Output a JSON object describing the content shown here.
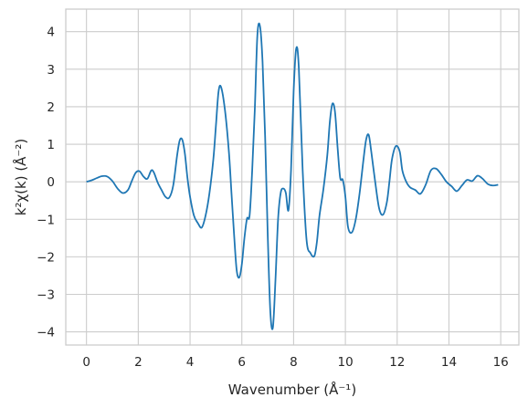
{
  "chart_data": {
    "type": "line",
    "title": "",
    "xlabel": "Wavenumber (Å⁻¹)",
    "ylabel": "k²χ(k) (Å⁻²)",
    "xlim": [
      -0.8,
      16.7
    ],
    "ylim": [
      -4.35,
      4.6
    ],
    "xticks": [
      0,
      2,
      4,
      6,
      8,
      10,
      12,
      14,
      16
    ],
    "xtick_labels": [
      "0",
      "2",
      "4",
      "6",
      "8",
      "10",
      "12",
      "14",
      "16"
    ],
    "yticks": [
      4,
      3,
      2,
      1,
      0,
      -1,
      -2,
      -3,
      -4
    ],
    "ytick_labels": [
      "4",
      "3",
      "2",
      "1",
      "0",
      "−1",
      "−2",
      "−3",
      "−4"
    ],
    "grid": true,
    "series": [
      {
        "color": "#1f77b4",
        "x": [
          0,
          0.2,
          0.4,
          0.6,
          0.8,
          1.0,
          1.2,
          1.4,
          1.6,
          1.75,
          1.9,
          2.05,
          2.2,
          2.35,
          2.5,
          2.6,
          2.75,
          2.9,
          3.05,
          3.2,
          3.35,
          3.5,
          3.6,
          3.7,
          3.8,
          3.9,
          4.0,
          4.15,
          4.3,
          4.45,
          4.6,
          4.75,
          4.9,
          5.0,
          5.1,
          5.2,
          5.35,
          5.5,
          5.6,
          5.7,
          5.8,
          5.9,
          6.0,
          6.1,
          6.2,
          6.3,
          6.4,
          6.5,
          6.6,
          6.7,
          6.8,
          6.9,
          7.0,
          7.1,
          7.2,
          7.3,
          7.4,
          7.5,
          7.6,
          7.7,
          7.8,
          7.9,
          8.0,
          8.1,
          8.2,
          8.35,
          8.5,
          8.65,
          8.8,
          8.9,
          9.0,
          9.15,
          9.3,
          9.4,
          9.5,
          9.6,
          9.7,
          9.8,
          9.9,
          10.0,
          10.1,
          10.25,
          10.4,
          10.55,
          10.7,
          10.8,
          10.9,
          11.0,
          11.15,
          11.3,
          11.45,
          11.6,
          11.7,
          11.8,
          11.95,
          12.1,
          12.2,
          12.35,
          12.5,
          12.7,
          12.9,
          13.1,
          13.3,
          13.5,
          13.7,
          13.9,
          14.1,
          14.3,
          14.5,
          14.7,
          14.9,
          15.1,
          15.3,
          15.5,
          15.7,
          15.9
        ],
        "y": [
          0.0,
          0.04,
          0.1,
          0.15,
          0.14,
          0.02,
          -0.18,
          -0.3,
          -0.22,
          0.02,
          0.24,
          0.28,
          0.14,
          0.08,
          0.3,
          0.25,
          -0.02,
          -0.22,
          -0.4,
          -0.42,
          -0.1,
          0.7,
          1.1,
          1.12,
          0.75,
          0.1,
          -0.4,
          -0.9,
          -1.1,
          -1.22,
          -0.9,
          -0.3,
          0.6,
          1.5,
          2.4,
          2.52,
          1.9,
          0.8,
          -0.3,
          -1.4,
          -2.35,
          -2.55,
          -2.2,
          -1.5,
          -0.98,
          -0.9,
          0.3,
          1.9,
          3.9,
          4.15,
          3.2,
          1.2,
          -1.4,
          -3.45,
          -3.88,
          -2.6,
          -1.0,
          -0.3,
          -0.18,
          -0.3,
          -0.76,
          0.3,
          2.4,
          3.55,
          3.05,
          0.3,
          -1.55,
          -1.9,
          -1.98,
          -1.6,
          -0.9,
          -0.2,
          0.7,
          1.6,
          2.08,
          1.85,
          0.9,
          0.1,
          0.05,
          -0.4,
          -1.2,
          -1.35,
          -1.0,
          -0.3,
          0.6,
          1.12,
          1.25,
          0.8,
          0.0,
          -0.7,
          -0.88,
          -0.55,
          0.0,
          0.6,
          0.95,
          0.8,
          0.3,
          0.0,
          -0.15,
          -0.22,
          -0.32,
          -0.08,
          0.3,
          0.35,
          0.2,
          0.0,
          -0.12,
          -0.25,
          -0.1,
          0.05,
          0.02,
          0.16,
          0.08,
          -0.06,
          -0.1,
          -0.08
        ]
      }
    ]
  }
}
